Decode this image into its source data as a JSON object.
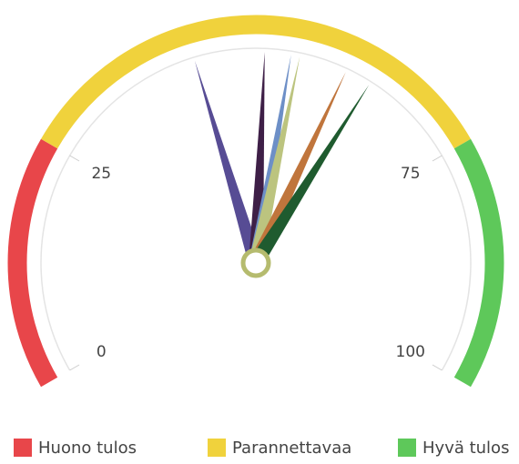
{
  "chart_data": {
    "type": "gauge",
    "ylim": [
      0,
      100
    ],
    "yticks": [
      0,
      25,
      75,
      100
    ],
    "bands": [
      {
        "name": "Huono tulos",
        "color": "#e8464a",
        "from": 0,
        "to": 25
      },
      {
        "name": "Parannettavaa",
        "color": "#f0d23c",
        "from": 25,
        "to": 75
      },
      {
        "name": "Hyvä tulos",
        "color": "#5ec85a",
        "from": 75,
        "to": 100
      }
    ],
    "series": [
      {
        "color": "#574c94",
        "values": [
          43
        ]
      },
      {
        "color": "#3e1f47",
        "values": [
          51
        ]
      },
      {
        "color": "#6d8fc7",
        "values": [
          54
        ]
      },
      {
        "color": "#bcc47f",
        "values": [
          55
        ]
      },
      {
        "color": "#c0753c",
        "values": [
          60.5
        ]
      },
      {
        "color": "#1f5b2f",
        "values": [
          63.5
        ]
      }
    ]
  }
}
